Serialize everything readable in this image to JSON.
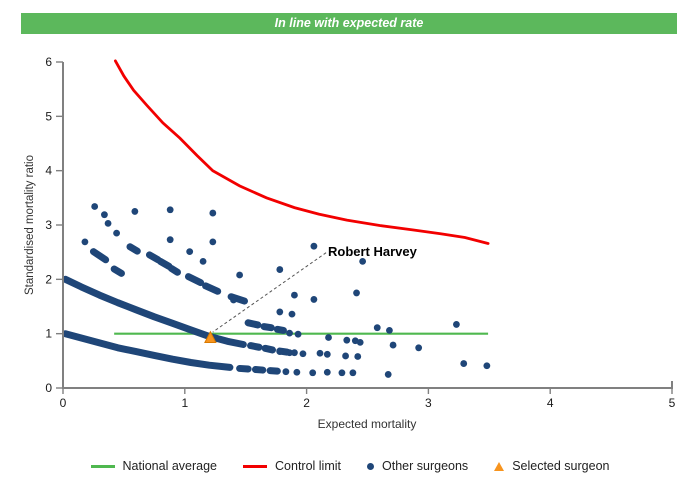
{
  "banner": {
    "text": "In line with expected rate",
    "bg": "#5cb85c"
  },
  "colors": {
    "banner_green": "#5cb85c",
    "national_average_green": "#4fb84f",
    "control_limit_red": "#f20000",
    "surgeon_navy": "#1f4678",
    "selected_orange": "#f7941e",
    "selected_orange_border": "#d97a00",
    "axis_gray": "#808080",
    "tick_text": "#1a1a1a",
    "annotation_line_gray": "#555555"
  },
  "chart_data": {
    "type": "scatter",
    "title": "In line with expected rate",
    "xlabel": "Expected mortality",
    "ylabel": "Standardised mortality ratio",
    "xlim": [
      0,
      5
    ],
    "ylim": [
      0,
      6
    ],
    "x_ticks": [
      0,
      1,
      2,
      3,
      4,
      5
    ],
    "y_ticks": [
      0,
      1,
      2,
      3,
      4,
      5,
      6
    ],
    "grid": false,
    "legend_position": "bottom",
    "national_average": {
      "y": 1.0,
      "x_start": 0.42,
      "x_end": 3.49
    },
    "control_limit": {
      "points": [
        [
          0.43,
          6.02
        ],
        [
          0.5,
          5.74
        ],
        [
          0.58,
          5.48
        ],
        [
          0.69,
          5.2
        ],
        [
          0.82,
          4.88
        ],
        [
          0.96,
          4.6
        ],
        [
          1.1,
          4.28
        ],
        [
          1.23,
          4.0
        ],
        [
          1.45,
          3.72
        ],
        [
          1.67,
          3.5
        ],
        [
          1.9,
          3.32
        ],
        [
          2.1,
          3.2
        ],
        [
          2.33,
          3.09
        ],
        [
          2.6,
          2.99
        ],
        [
          2.87,
          2.91
        ],
        [
          3.1,
          2.84
        ],
        [
          3.3,
          2.77
        ],
        [
          3.49,
          2.66
        ]
      ]
    },
    "selected_surgeon": {
      "name": "Robert Harvey",
      "x": 1.21,
      "y": 0.93
    },
    "other_surgeons": {
      "dense_bands": [
        {
          "points": [
            [
              0.02,
              2.0
            ],
            [
              0.15,
              1.86
            ],
            [
              0.3,
              1.71
            ],
            [
              0.45,
              1.57
            ],
            [
              0.6,
              1.44
            ],
            [
              0.75,
              1.31
            ],
            [
              0.9,
              1.19
            ],
            [
              1.05,
              1.07
            ],
            [
              1.2,
              0.95
            ],
            [
              1.35,
              0.86
            ],
            [
              1.48,
              0.8
            ]
          ]
        },
        {
          "points": [
            [
              0.02,
              1.0
            ],
            [
              0.15,
              0.92
            ],
            [
              0.3,
              0.83
            ],
            [
              0.45,
              0.74
            ],
            [
              0.6,
              0.67
            ],
            [
              0.75,
              0.6
            ],
            [
              0.9,
              0.53
            ],
            [
              1.05,
              0.47
            ],
            [
              1.2,
              0.42
            ],
            [
              1.37,
              0.38
            ]
          ]
        }
      ],
      "dash_clusters": [
        [
          0.25,
          2.51,
          0.35,
          2.36
        ],
        [
          0.42,
          2.19,
          0.48,
          2.11
        ],
        [
          0.55,
          2.6,
          0.61,
          2.52
        ],
        [
          0.71,
          2.45,
          0.78,
          2.36
        ],
        [
          0.8,
          2.33,
          0.87,
          2.24
        ],
        [
          0.89,
          2.2,
          0.94,
          2.13
        ],
        [
          1.03,
          2.05,
          1.13,
          1.94
        ],
        [
          1.17,
          1.88,
          1.27,
          1.78
        ],
        [
          1.38,
          1.68,
          1.49,
          1.6
        ],
        [
          1.54,
          0.78,
          1.61,
          0.75
        ],
        [
          1.66,
          0.73,
          1.72,
          0.7
        ],
        [
          1.78,
          0.68,
          1.84,
          0.66
        ],
        [
          1.45,
          0.36,
          1.52,
          0.35
        ],
        [
          1.58,
          0.34,
          1.64,
          0.33
        ],
        [
          1.7,
          0.32,
          1.76,
          0.31
        ],
        [
          1.52,
          1.2,
          1.6,
          1.16
        ],
        [
          1.65,
          1.13,
          1.71,
          1.11
        ],
        [
          1.76,
          1.08,
          1.81,
          1.06
        ]
      ],
      "dots": [
        [
          0.18,
          2.69
        ],
        [
          0.26,
          3.34
        ],
        [
          0.34,
          3.19
        ],
        [
          0.37,
          3.03
        ],
        [
          0.44,
          2.85
        ],
        [
          0.59,
          3.25
        ],
        [
          0.88,
          3.28
        ],
        [
          1.23,
          3.22
        ],
        [
          0.88,
          2.73
        ],
        [
          1.04,
          2.51
        ],
        [
          1.15,
          2.33
        ],
        [
          1.23,
          2.69
        ],
        [
          1.4,
          1.62
        ],
        [
          1.45,
          2.08
        ],
        [
          1.78,
          2.18
        ],
        [
          1.9,
          1.71
        ],
        [
          2.06,
          2.61
        ],
        [
          2.06,
          1.63
        ],
        [
          2.41,
          1.75
        ],
        [
          2.46,
          2.33
        ],
        [
          1.78,
          1.4
        ],
        [
          1.88,
          1.36
        ],
        [
          2.58,
          1.11
        ],
        [
          2.68,
          1.06
        ],
        [
          3.23,
          1.17
        ],
        [
          1.86,
          1.01
        ],
        [
          1.93,
          0.99
        ],
        [
          2.18,
          0.93
        ],
        [
          2.33,
          0.88
        ],
        [
          2.4,
          0.87
        ],
        [
          2.44,
          0.84
        ],
        [
          2.71,
          0.79
        ],
        [
          2.92,
          0.74
        ],
        [
          1.78,
          0.67
        ],
        [
          1.86,
          0.65
        ],
        [
          2.11,
          0.64
        ],
        [
          2.17,
          0.62
        ],
        [
          2.32,
          0.59
        ],
        [
          2.42,
          0.58
        ],
        [
          1.9,
          0.65
        ],
        [
          1.97,
          0.63
        ],
        [
          1.83,
          0.3
        ],
        [
          1.92,
          0.29
        ],
        [
          2.05,
          0.28
        ],
        [
          2.17,
          0.29
        ],
        [
          2.29,
          0.28
        ],
        [
          2.38,
          0.28
        ],
        [
          2.67,
          0.25
        ],
        [
          3.29,
          0.45
        ],
        [
          3.48,
          0.41
        ]
      ]
    }
  },
  "annotation": {
    "label": "Robert Harvey",
    "line_from": [
      2.16,
      2.49
    ],
    "line_to": [
      1.23,
      1.03
    ]
  },
  "axes": {
    "x_title": "Expected mortality",
    "y_title": "Standardised mortality ratio"
  },
  "legend": {
    "items": [
      {
        "label": "National average",
        "swatch": "line",
        "color": "#4fb84f"
      },
      {
        "label": "Control limit",
        "swatch": "line",
        "color": "#f20000"
      },
      {
        "label": "Other surgeons",
        "swatch": "dot",
        "color": "#1f4678"
      },
      {
        "label": "Selected surgeon",
        "swatch": "tri",
        "color": "#f7941e"
      }
    ]
  }
}
